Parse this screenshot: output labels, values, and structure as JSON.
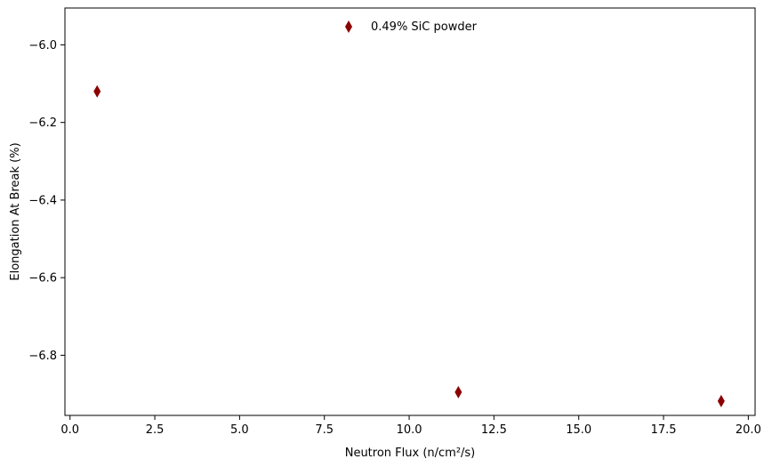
{
  "chart_data": {
    "type": "scatter",
    "xlabel": "Neutron Flux (n/cm²/s)",
    "ylabel": "Elongation At Break (%)",
    "xlim": [
      -0.15,
      20.2
    ],
    "ylim": [
      -6.955,
      -5.905
    ],
    "xticks": [
      0.0,
      2.5,
      5.0,
      7.5,
      10.0,
      12.5,
      15.0,
      17.5,
      20.0
    ],
    "xtick_labels": [
      "0.0",
      "2.5",
      "5.0",
      "7.5",
      "10.0",
      "12.5",
      "15.0",
      "17.5",
      "20.0"
    ],
    "yticks": [
      -6.8,
      -6.6,
      -6.4,
      -6.2,
      -6.0
    ],
    "ytick_labels": [
      "−6.8",
      "−6.6",
      "−6.4",
      "−6.2",
      "−6.0"
    ],
    "grid": false,
    "legend_position": "top-center",
    "series": [
      {
        "name": "0.49% SiC powder",
        "color": "#8b0000",
        "marker": "thin-diamond",
        "x": [
          0.8,
          11.45,
          19.2
        ],
        "y": [
          -6.12,
          -6.895,
          -6.918
        ]
      }
    ]
  }
}
